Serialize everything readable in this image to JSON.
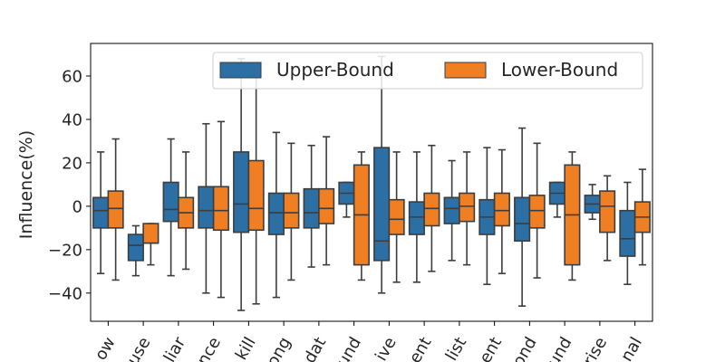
{
  "chart_data": {
    "type": "box",
    "title": "",
    "xlabel": "",
    "ylabel": "Influence(%)",
    "ylim": [
      -53,
      75
    ],
    "yticks": [
      -40,
      -20,
      0,
      20,
      40,
      60
    ],
    "grid": false,
    "legend_position": "top-right",
    "categories": [
      "ow",
      "use",
      "liar",
      "nce",
      "kill",
      "ong",
      "dat",
      "und",
      "ive",
      "ent",
      "list",
      "ent",
      "ond",
      "und",
      "rise",
      "nal"
    ],
    "series": [
      {
        "name": "Upper-Bound",
        "color": "#2c6fa5",
        "boxes": [
          {
            "whislo": -31,
            "q1": -10,
            "med": -2,
            "q3": 4,
            "whishi": 25
          },
          {
            "whislo": -32,
            "q1": -25,
            "med": -18,
            "q3": -13,
            "whishi": -9
          },
          {
            "whislo": -32,
            "q1": -7,
            "med": -1.5,
            "q3": 11,
            "whishi": 31
          },
          {
            "whislo": -40,
            "q1": -10,
            "med": -2,
            "q3": 9,
            "whishi": 38
          },
          {
            "whislo": -48,
            "q1": -12,
            "med": 1,
            "q3": 25,
            "whishi": 68
          },
          {
            "whislo": -42,
            "q1": -13,
            "med": -3,
            "q3": 6,
            "whishi": 34
          },
          {
            "whislo": -28,
            "q1": -10,
            "med": -3,
            "q3": 8,
            "whishi": 28
          },
          {
            "whislo": -5,
            "q1": 1,
            "med": 6,
            "q3": 11,
            "whishi": 11
          },
          {
            "whislo": -40,
            "q1": -25,
            "med": -16,
            "q3": 27,
            "whishi": 69
          },
          {
            "whislo": -35,
            "q1": -13,
            "med": -5,
            "q3": 2,
            "whishi": 25
          },
          {
            "whislo": -25,
            "q1": -8,
            "med": -1,
            "q3": 4,
            "whishi": 21
          },
          {
            "whislo": -36,
            "q1": -13,
            "med": -5,
            "q3": 3,
            "whishi": 27
          },
          {
            "whislo": -46,
            "q1": -16,
            "med": -8,
            "q3": 4,
            "whishi": 36
          },
          {
            "whislo": -5,
            "q1": 1,
            "med": 6,
            "q3": 11,
            "whishi": 11
          },
          {
            "whislo": -6,
            "q1": -3,
            "med": 1,
            "q3": 5,
            "whishi": 10
          },
          {
            "whislo": -36,
            "q1": -23,
            "med": -15,
            "q3": -2,
            "whishi": 11
          }
        ]
      },
      {
        "name": "Lower-Bound",
        "color": "#f07f24",
        "boxes": [
          {
            "whislo": -34,
            "q1": -10,
            "med": -1,
            "q3": 7,
            "whishi": 31
          },
          {
            "whislo": -27,
            "q1": -17,
            "med": -17,
            "q3": -8,
            "whishi": -8
          },
          {
            "whislo": -29,
            "q1": -10,
            "med": -3,
            "q3": 4,
            "whishi": 25
          },
          {
            "whislo": -42,
            "q1": -11,
            "med": -2,
            "q3": 9,
            "whishi": 39
          },
          {
            "whislo": -45,
            "q1": -11,
            "med": -1,
            "q3": 21,
            "whishi": 66
          },
          {
            "whislo": -34,
            "q1": -10,
            "med": -3,
            "q3": 6,
            "whishi": 29
          },
          {
            "whislo": -27,
            "q1": -8,
            "med": -1,
            "q3": 8,
            "whishi": 32
          },
          {
            "whislo": -34,
            "q1": -27,
            "med": -4,
            "q3": 19,
            "whishi": 25
          },
          {
            "whislo": -35,
            "q1": -13,
            "med": -6,
            "q3": 3,
            "whishi": 25
          },
          {
            "whislo": -30,
            "q1": -9,
            "med": -1,
            "q3": 6,
            "whishi": 28
          },
          {
            "whislo": -27,
            "q1": -7,
            "med": 0,
            "q3": 6,
            "whishi": 25
          },
          {
            "whislo": -31,
            "q1": -9,
            "med": -2,
            "q3": 6,
            "whishi": 26
          },
          {
            "whislo": -33,
            "q1": -10,
            "med": -2,
            "q3": 5,
            "whishi": 29
          },
          {
            "whislo": -34,
            "q1": -27,
            "med": -4,
            "q3": 19,
            "whishi": 25
          },
          {
            "whislo": -25,
            "q1": -12,
            "med": 0,
            "q3": 7,
            "whishi": 14
          },
          {
            "whislo": -27,
            "q1": -12,
            "med": -5,
            "q3": 2,
            "whishi": 17
          }
        ]
      }
    ]
  }
}
